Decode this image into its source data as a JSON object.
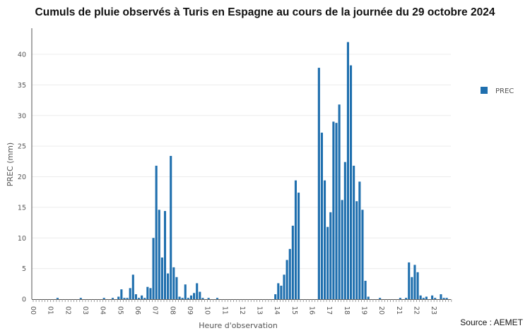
{
  "chart_data": {
    "type": "bar",
    "title": "Cumuls de pluie observés à Turis en Espagne au cours de la journée du 29 octobre 2024",
    "xlabel": "Heure d'observation",
    "ylabel": "PREC (mm)",
    "ylim": [
      0,
      44
    ],
    "y_ticks": [
      0,
      5,
      10,
      15,
      20,
      25,
      30,
      35,
      40
    ],
    "x_ticks": [
      "00",
      "01",
      "02",
      "03",
      "04",
      "05",
      "06",
      "07",
      "08",
      "09",
      "10",
      "11",
      "12",
      "13",
      "14",
      "15",
      "16",
      "17",
      "18",
      "19",
      "20",
      "21",
      "22",
      "23"
    ],
    "bars_per_hour": 6,
    "grid": true,
    "legend_position": "right",
    "series": [
      {
        "name": "PREC",
        "color": "#1f6fae",
        "values": [
          0,
          0,
          0,
          0,
          0,
          0,
          0,
          0,
          0.2,
          0,
          0,
          0,
          0,
          0,
          0,
          0,
          0.2,
          0,
          0,
          0,
          0,
          0,
          0,
          0,
          0.2,
          0,
          0,
          0.2,
          0,
          0.4,
          1.6,
          0.2,
          0.2,
          1.8,
          4.0,
          0.8,
          0.2,
          0.6,
          0.2,
          2.0,
          1.8,
          10.0,
          21.8,
          14.6,
          6.8,
          14.4,
          4.2,
          23.4,
          5.2,
          3.6,
          0.4,
          0.2,
          2.4,
          0.2,
          0.6,
          1.0,
          2.6,
          1.2,
          0.2,
          0,
          0.2,
          0,
          0,
          0.2,
          0,
          0,
          0,
          0,
          0,
          0,
          0,
          0,
          0,
          0,
          0,
          0,
          0,
          0,
          0,
          0,
          0,
          0,
          0,
          0.8,
          2.6,
          2.2,
          4.0,
          6.4,
          8.2,
          12.0,
          19.4,
          17.4,
          0,
          0,
          0,
          0,
          0,
          0,
          37.8,
          27.2,
          19.4,
          11.8,
          14.2,
          29.0,
          28.8,
          31.8,
          16.2,
          22.4,
          42.0,
          38.2,
          21.8,
          16.0,
          19.2,
          14.6,
          3.0,
          0.4,
          0,
          0,
          0,
          0.2,
          0,
          0,
          0,
          0,
          0,
          0,
          0.2,
          0,
          0.2,
          6.0,
          3.6,
          5.6,
          4.4,
          0.6,
          0.2,
          0.4,
          0,
          0.6,
          0.2,
          0,
          0.8,
          0.2,
          0.2,
          0
        ]
      }
    ]
  },
  "source": "Source : AEMET"
}
